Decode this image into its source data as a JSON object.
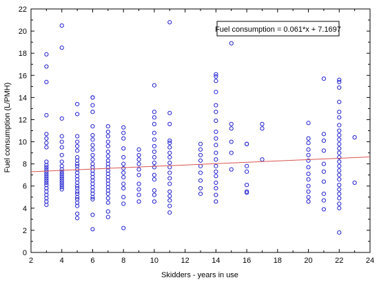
{
  "chart_data": {
    "type": "scatter",
    "title": "",
    "xlabel": "Skidders - years in use",
    "ylabel": "Fuel consumption (L/PMH)",
    "xlim": [
      2,
      24
    ],
    "ylim": [
      0,
      22
    ],
    "x_ticks": [
      "2",
      "4",
      "6",
      "8",
      "10",
      "12",
      "14",
      "16",
      "18",
      "20",
      "22",
      "24"
    ],
    "y_ticks": [
      "0",
      "2",
      "4",
      "6",
      "8",
      "10",
      "12",
      "14",
      "16",
      "18",
      "20",
      "22"
    ],
    "grid": false,
    "legend": "none",
    "annotation": "Fuel consumption = 0.061*x + 7.1697",
    "trendline": {
      "slope": 0.061,
      "intercept": 7.1697,
      "color": "#d9534f"
    },
    "marker_color": "#1f1fd0",
    "background": "#ffffff",
    "points": [
      [
        3,
        4.3
      ],
      [
        3,
        4.6
      ],
      [
        3,
        4.9
      ],
      [
        3,
        5.2
      ],
      [
        3,
        5.5
      ],
      [
        3,
        5.8
      ],
      [
        3,
        6.1
      ],
      [
        3,
        6.3
      ],
      [
        3,
        6.5
      ],
      [
        3,
        6.7
      ],
      [
        3,
        6.9
      ],
      [
        3,
        7.1
      ],
      [
        3,
        7.3
      ],
      [
        3,
        7.5
      ],
      [
        3,
        7.7
      ],
      [
        3,
        7.9
      ],
      [
        3,
        8.2
      ],
      [
        3,
        9.5
      ],
      [
        3,
        9.9
      ],
      [
        3,
        10.3
      ],
      [
        3,
        10.7
      ],
      [
        3,
        12.4
      ],
      [
        3,
        15.4
      ],
      [
        3,
        16.8
      ],
      [
        3,
        17.9
      ],
      [
        4,
        5.7
      ],
      [
        4,
        5.9
      ],
      [
        4,
        6.1
      ],
      [
        4,
        6.3
      ],
      [
        4,
        6.5
      ],
      [
        4,
        6.7
      ],
      [
        4,
        6.9
      ],
      [
        4,
        7.1
      ],
      [
        4,
        7.3
      ],
      [
        4,
        7.5
      ],
      [
        4,
        7.8
      ],
      [
        4,
        8.2
      ],
      [
        4,
        8.8
      ],
      [
        4,
        9.5
      ],
      [
        4,
        10.0
      ],
      [
        4,
        10.5
      ],
      [
        4,
        12.1
      ],
      [
        4,
        18.5
      ],
      [
        4,
        20.5
      ],
      [
        5,
        3.1
      ],
      [
        5,
        3.5
      ],
      [
        5,
        4.2
      ],
      [
        5,
        4.5
      ],
      [
        5,
        4.8
      ],
      [
        5,
        5.0
      ],
      [
        5,
        5.3
      ],
      [
        5,
        5.5
      ],
      [
        5,
        5.8
      ],
      [
        5,
        6.0
      ],
      [
        5,
        6.3
      ],
      [
        5,
        6.6
      ],
      [
        5,
        6.9
      ],
      [
        5,
        7.2
      ],
      [
        5,
        7.5
      ],
      [
        5,
        7.8
      ],
      [
        5,
        8.0
      ],
      [
        5,
        8.3
      ],
      [
        5,
        8.6
      ],
      [
        5,
        9.2
      ],
      [
        5,
        9.6
      ],
      [
        5,
        10.0
      ],
      [
        5,
        10.5
      ],
      [
        5,
        12.5
      ],
      [
        5,
        13.4
      ],
      [
        6,
        2.1
      ],
      [
        6,
        3.4
      ],
      [
        6,
        4.8
      ],
      [
        6,
        5.0
      ],
      [
        6,
        5.3
      ],
      [
        6,
        5.6
      ],
      [
        6,
        5.9
      ],
      [
        6,
        6.2
      ],
      [
        6,
        6.5
      ],
      [
        6,
        6.8
      ],
      [
        6,
        7.1
      ],
      [
        6,
        7.4
      ],
      [
        6,
        7.7
      ],
      [
        6,
        8.0
      ],
      [
        6,
        8.4
      ],
      [
        6,
        8.8
      ],
      [
        6,
        9.3
      ],
      [
        6,
        9.7
      ],
      [
        6,
        10.2
      ],
      [
        6,
        10.6
      ],
      [
        6,
        11.4
      ],
      [
        6,
        12.7
      ],
      [
        6,
        13.3
      ],
      [
        6,
        14.0
      ],
      [
        6,
        14.0
      ],
      [
        7,
        3.2
      ],
      [
        7,
        3.7
      ],
      [
        7,
        4.5
      ],
      [
        7,
        4.9
      ],
      [
        7,
        5.3
      ],
      [
        7,
        5.6
      ],
      [
        7,
        5.9
      ],
      [
        7,
        6.2
      ],
      [
        7,
        6.5
      ],
      [
        7,
        6.8
      ],
      [
        7,
        7.1
      ],
      [
        7,
        7.4
      ],
      [
        7,
        7.7
      ],
      [
        7,
        8.0
      ],
      [
        7,
        8.3
      ],
      [
        7,
        8.7
      ],
      [
        7,
        9.1
      ],
      [
        7,
        9.6
      ],
      [
        7,
        10.0
      ],
      [
        7,
        10.5
      ],
      [
        7,
        10.9
      ],
      [
        7,
        11.4
      ],
      [
        8,
        2.2
      ],
      [
        8,
        4.4
      ],
      [
        8,
        5.0
      ],
      [
        8,
        5.8
      ],
      [
        8,
        6.2
      ],
      [
        8,
        6.8
      ],
      [
        8,
        7.2
      ],
      [
        8,
        7.6
      ],
      [
        8,
        8.0
      ],
      [
        8,
        8.6
      ],
      [
        8,
        9.4
      ],
      [
        8,
        10.3
      ],
      [
        8,
        10.8
      ],
      [
        8,
        11.3
      ],
      [
        9,
        4.6
      ],
      [
        9,
        5.2
      ],
      [
        9,
        5.7
      ],
      [
        9,
        6.2
      ],
      [
        9,
        7.0
      ],
      [
        9,
        7.5
      ],
      [
        9,
        8.0
      ],
      [
        9,
        8.4
      ],
      [
        9,
        8.8
      ],
      [
        9,
        9.3
      ],
      [
        10,
        4.6
      ],
      [
        10,
        5.2
      ],
      [
        10,
        5.6
      ],
      [
        10,
        6.6
      ],
      [
        10,
        7.0
      ],
      [
        10,
        7.7
      ],
      [
        10,
        8.1
      ],
      [
        10,
        8.6
      ],
      [
        10,
        9.1
      ],
      [
        10,
        9.6
      ],
      [
        10,
        10.2
      ],
      [
        10,
        10.8
      ],
      [
        10,
        11.6
      ],
      [
        10,
        12.2
      ],
      [
        10,
        12.7
      ],
      [
        10,
        15.1
      ],
      [
        11,
        3.6
      ],
      [
        11,
        4.2
      ],
      [
        11,
        4.7
      ],
      [
        11,
        5.1
      ],
      [
        11,
        5.5
      ],
      [
        11,
        6.2
      ],
      [
        11,
        6.7
      ],
      [
        11,
        7.2
      ],
      [
        11,
        7.7
      ],
      [
        11,
        8.1
      ],
      [
        11,
        8.6
      ],
      [
        11,
        9.0
      ],
      [
        11,
        9.5
      ],
      [
        11,
        9.9
      ],
      [
        11,
        10.1
      ],
      [
        11,
        11.6
      ],
      [
        11,
        12.6
      ],
      [
        11,
        20.8
      ],
      [
        13,
        5.3
      ],
      [
        13,
        5.8
      ],
      [
        13,
        6.5
      ],
      [
        13,
        7.2
      ],
      [
        13,
        7.8
      ],
      [
        13,
        8.3
      ],
      [
        13,
        8.8
      ],
      [
        13,
        9.3
      ],
      [
        13,
        9.8
      ],
      [
        14,
        4.6
      ],
      [
        14,
        5.2
      ],
      [
        14,
        5.8
      ],
      [
        14,
        6.3
      ],
      [
        14,
        6.9
      ],
      [
        14,
        7.3
      ],
      [
        14,
        7.8
      ],
      [
        14,
        8.4
      ],
      [
        14,
        9.0
      ],
      [
        14,
        9.7
      ],
      [
        14,
        10.3
      ],
      [
        14,
        10.9
      ],
      [
        14,
        11.9
      ],
      [
        14,
        12.7
      ],
      [
        14,
        13.3
      ],
      [
        14,
        14.5
      ],
      [
        14,
        15.5
      ],
      [
        14,
        15.9
      ],
      [
        14,
        16.1
      ],
      [
        15,
        7.5
      ],
      [
        15,
        9.0
      ],
      [
        15,
        10.0
      ],
      [
        15,
        11.2
      ],
      [
        15,
        11.6
      ],
      [
        15,
        18.9
      ],
      [
        16,
        5.4
      ],
      [
        16,
        5.5
      ],
      [
        16,
        6.1
      ],
      [
        16,
        7.3
      ],
      [
        16,
        7.8
      ],
      [
        16,
        9.8
      ],
      [
        16,
        9.8
      ],
      [
        17,
        8.4
      ],
      [
        17,
        11.2
      ],
      [
        17,
        11.6
      ],
      [
        20,
        4.6
      ],
      [
        20,
        5.0
      ],
      [
        20,
        5.5
      ],
      [
        20,
        6.0
      ],
      [
        20,
        6.6
      ],
      [
        20,
        7.1
      ],
      [
        20,
        7.7
      ],
      [
        20,
        8.3
      ],
      [
        20,
        8.8
      ],
      [
        20,
        9.3
      ],
      [
        20,
        9.9
      ],
      [
        20,
        10.3
      ],
      [
        20,
        11.7
      ],
      [
        21,
        3.9
      ],
      [
        21,
        4.7
      ],
      [
        21,
        5.3
      ],
      [
        21,
        6.4
      ],
      [
        21,
        7.3
      ],
      [
        21,
        8.0
      ],
      [
        21,
        9.2
      ],
      [
        21,
        10.1
      ],
      [
        21,
        10.7
      ],
      [
        21,
        15.7
      ],
      [
        22,
        1.8
      ],
      [
        22,
        4.0
      ],
      [
        22,
        4.4
      ],
      [
        22,
        4.9
      ],
      [
        22,
        5.3
      ],
      [
        22,
        5.7
      ],
      [
        22,
        6.1
      ],
      [
        22,
        6.6
      ],
      [
        22,
        7.0
      ],
      [
        22,
        7.4
      ],
      [
        22,
        7.8
      ],
      [
        22,
        8.2
      ],
      [
        22,
        8.6
      ],
      [
        22,
        9.0
      ],
      [
        22,
        9.4
      ],
      [
        22,
        9.8
      ],
      [
        22,
        10.2
      ],
      [
        22,
        10.6
      ],
      [
        22,
        11.0
      ],
      [
        22,
        11.5
      ],
      [
        22,
        12.2
      ],
      [
        22,
        12.7
      ],
      [
        22,
        13.6
      ],
      [
        22,
        14.9
      ],
      [
        22,
        15.4
      ],
      [
        22,
        15.6
      ],
      [
        23,
        6.3
      ],
      [
        23,
        10.4
      ]
    ]
  }
}
